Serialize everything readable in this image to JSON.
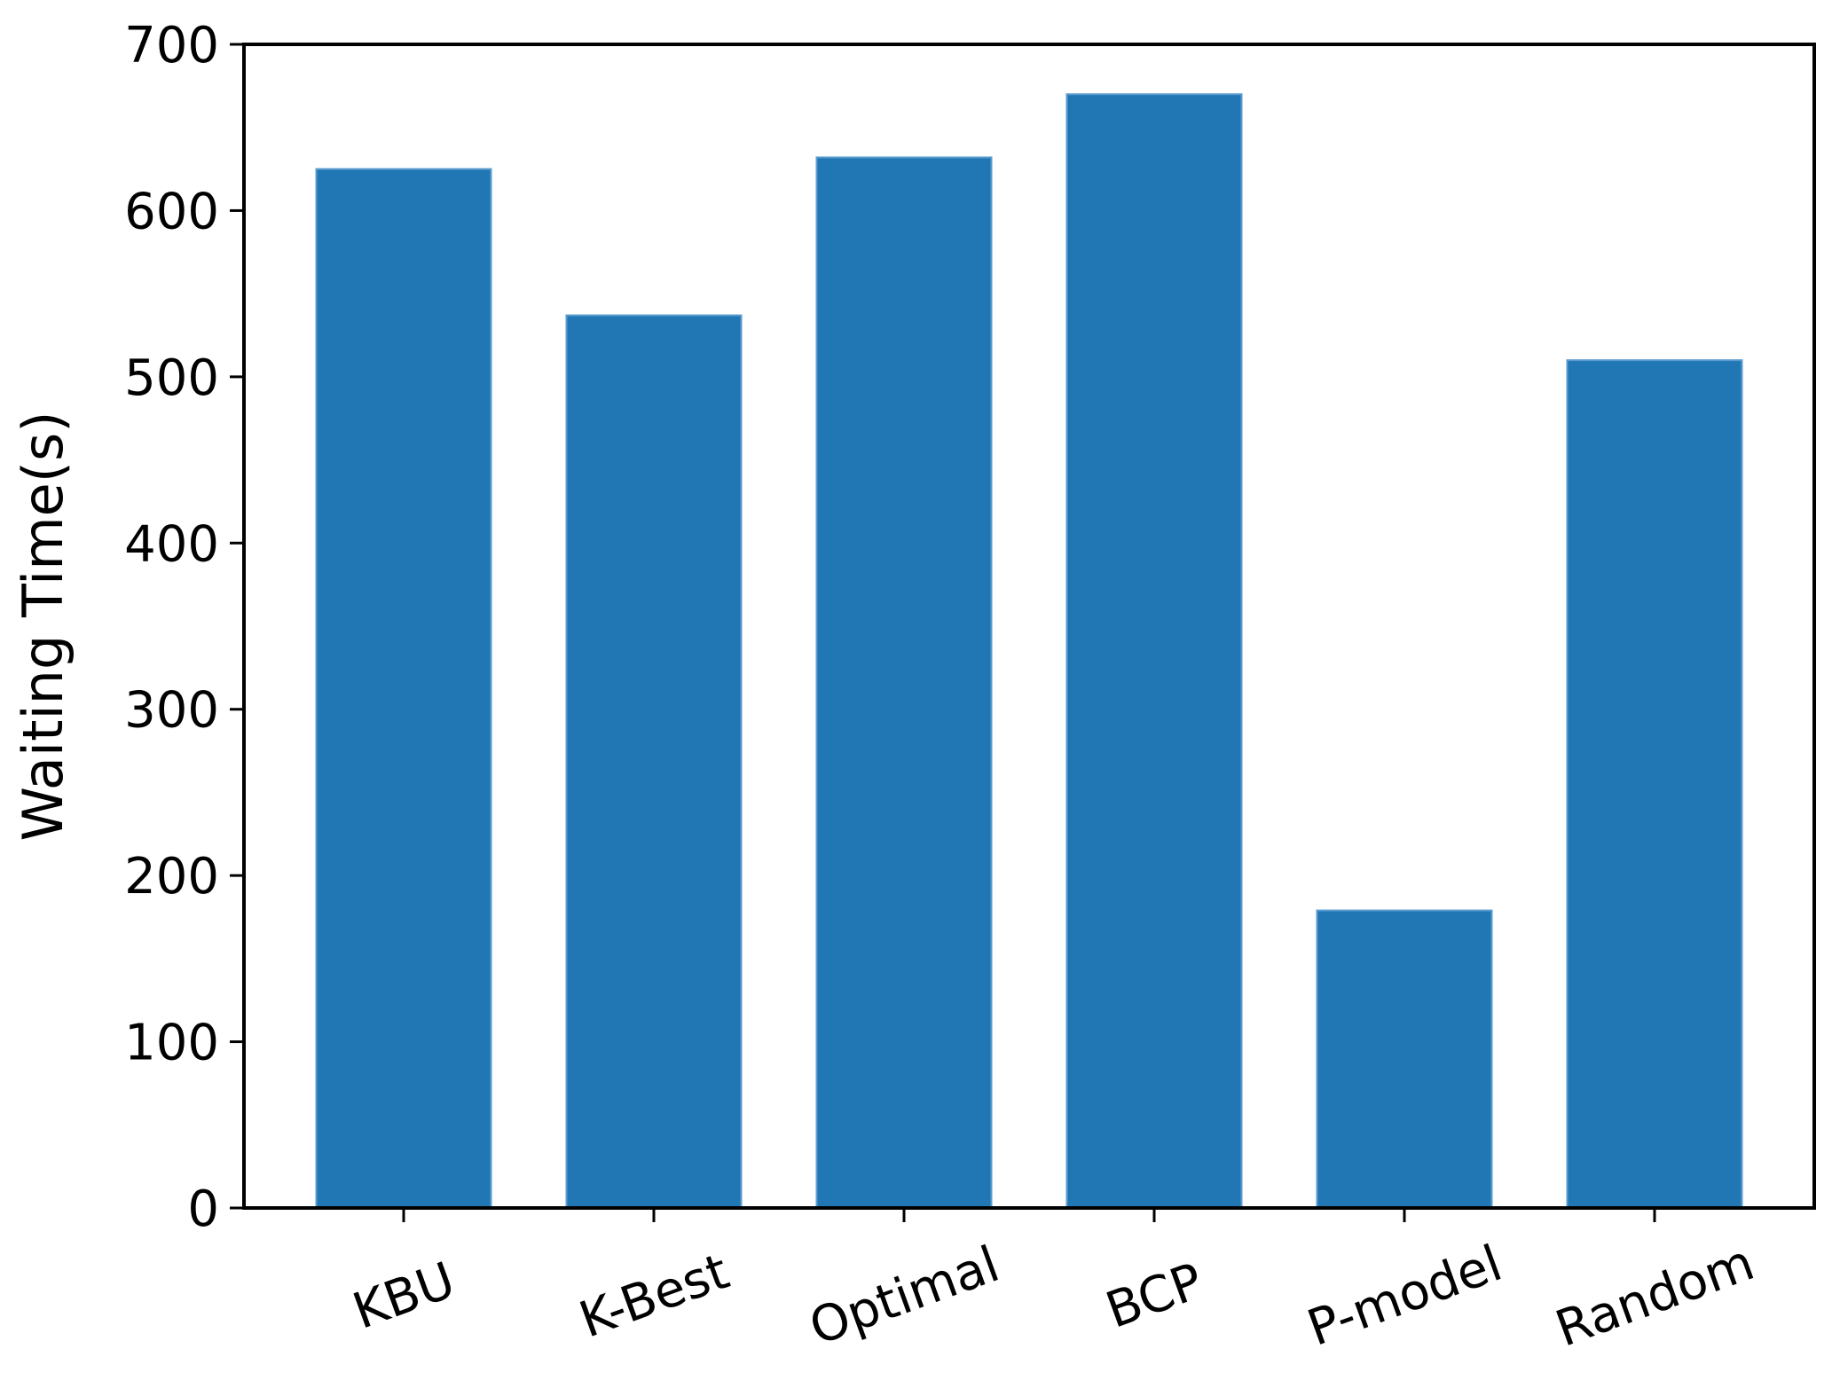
{
  "chart_data": {
    "type": "bar",
    "title": "",
    "xlabel": "",
    "ylabel": "Waiting Time(s)",
    "categories": [
      "KBU",
      "K-Best",
      "Optimal",
      "BCP",
      "P-model",
      "Random"
    ],
    "values": [
      625,
      537,
      632,
      670,
      179,
      510
    ],
    "ylim": [
      0,
      700
    ],
    "yticks": [
      0,
      100,
      200,
      300,
      400,
      500,
      600,
      700
    ],
    "ytick_labels": [
      "0",
      "100",
      "200",
      "300",
      "400",
      "500",
      "600",
      "700"
    ],
    "xtick_rotation_deg": -20,
    "grid": false,
    "legend": "none",
    "colors": {
      "bar": "#2077b4",
      "axis": "#000000"
    }
  }
}
